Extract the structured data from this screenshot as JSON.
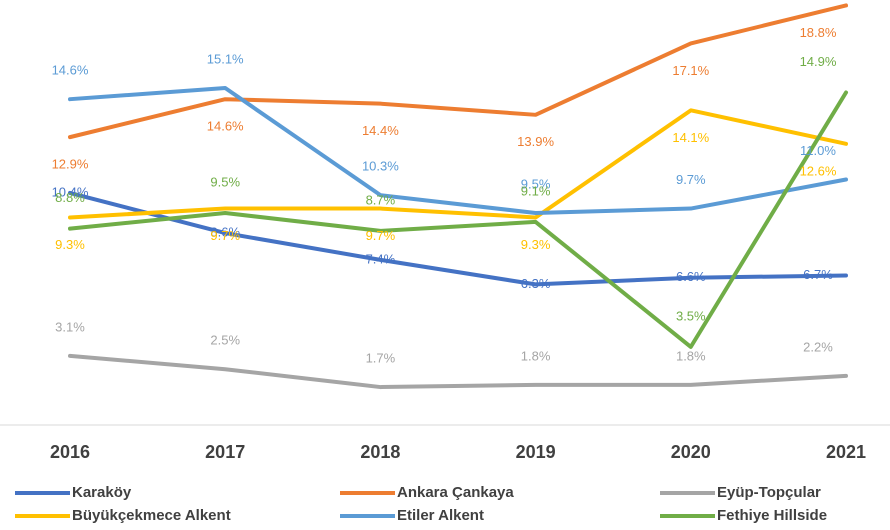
{
  "chart_data": {
    "type": "line",
    "categories": [
      "2016",
      "2017",
      "2018",
      "2019",
      "2020",
      "2021"
    ],
    "series": [
      {
        "name": "Karaköy",
        "color": "#4472c4",
        "values": [
          10.4,
          8.6,
          7.4,
          6.3,
          6.6,
          6.7
        ],
        "value_labels": [
          "10.4%",
          "8.6%",
          "7.4%",
          "6.3%",
          "6.6%",
          "6.7%"
        ]
      },
      {
        "name": "Ankara Çankaya",
        "color": "#ed7d31",
        "values": [
          12.9,
          14.6,
          14.4,
          13.9,
          17.1,
          18.8
        ],
        "value_labels": [
          "12.9%",
          "14.6%",
          "14.4%",
          "13.9%",
          "17.1%",
          "18.8%"
        ]
      },
      {
        "name": "Eyüp-Topçular",
        "color": "#a5a5a5",
        "values": [
          3.1,
          2.5,
          1.7,
          1.8,
          1.8,
          2.2
        ],
        "value_labels": [
          "3.1%",
          "2.5%",
          "1.7%",
          "1.8%",
          "1.8%",
          "2.2%"
        ]
      },
      {
        "name": "Büyükçekmece Alkent",
        "color": "#ffc000",
        "values": [
          9.3,
          9.7,
          9.7,
          9.3,
          14.1,
          12.6
        ],
        "value_labels": [
          "9.3%",
          "9.7%",
          "9.7%",
          "9.3%",
          "14.1%",
          "12.6%"
        ]
      },
      {
        "name": "Etiler Alkent",
        "color": "#5b9bd5",
        "values": [
          14.6,
          15.1,
          10.3,
          9.5,
          9.7,
          11.0
        ],
        "value_labels": [
          "14.6%",
          "15.1%",
          "10.3%",
          "9.5%",
          "9.7%",
          "11.0%"
        ]
      },
      {
        "name": "Fethiye Hillside",
        "color": "#70ad47",
        "values": [
          8.8,
          9.5,
          8.7,
          9.1,
          3.5,
          14.9
        ],
        "value_labels": [
          "8.8%",
          "9.5%",
          "8.7%",
          "9.1%",
          "3.5%",
          "14.9%"
        ]
      }
    ],
    "ylim": [
      0,
      19
    ]
  }
}
